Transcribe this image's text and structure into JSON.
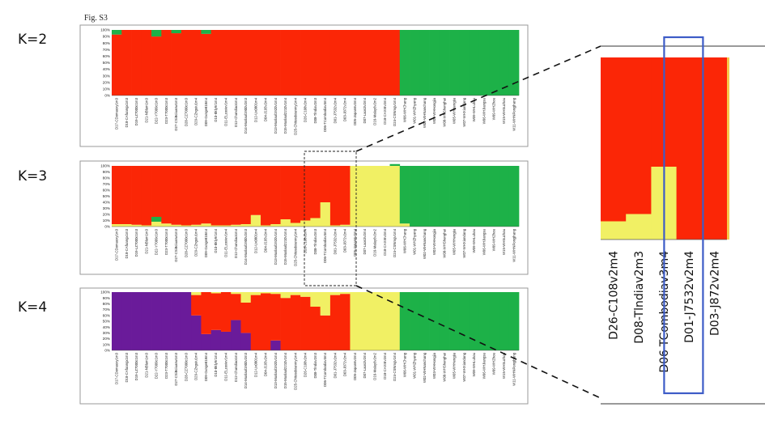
{
  "figure_label": "Fig. S3",
  "colors": {
    "red": "#fb2606",
    "green": "#1db148",
    "yellow": "#f1f064",
    "purple": "#6a1b9a",
    "frame": "#9a9a9a",
    "highlight": "#3d5cc7"
  },
  "samples": [
    "D17-CDomaoxy1m3",
    "D18-CAfaangx1m3",
    "D19-LZ7000c1m3",
    "D21-NBlam1m3",
    "D22-Y7009c1m3",
    "D23-T7000c1m3",
    "D27-CSiBciuasw1m3",
    "D28-CZ7000c1m3",
    "D29-CZnguiu1m4",
    "D09-Gxnge818m4",
    "D10-Bkly9r1m4",
    "D11-ELzoxiev1m4",
    "D12-Chandiao1m4",
    "D14-Muslaol1900v2m3",
    "D12-Ux0801m4",
    "D04-J195v2m4",
    "D13-Muslaol1920v1m4",
    "D15-Muslaol2210v1m4",
    "D25-Chitosdxianmy1m4",
    "D26-C108v2m4",
    "D08-Tlndiav2m3",
    "D06-TCombodiav3m4",
    "D01-J7532v2m4",
    "D03-J872v2m4",
    "D05-Japan6v2m4",
    "D07-Laos3v2m4",
    "D16-Malay6v2m2",
    "D18-CAXIEv2m4",
    "D24-CSNmgv1m4",
    "W06-WHChang",
    "W01-WHZhyang",
    "W02-WHNanchang",
    "W03-WHHongjia",
    "W08-WHShenghai",
    "W05-WHHengjia",
    "W07-WHXiandang",
    "W09-WHLuhou",
    "W06-WHJiangsu",
    "W09-WHZhou",
    "W15-WHSuzhou",
    "W11-WHNPongjhang"
  ],
  "zoom": {
    "labels": [
      "D26-C108v2m4",
      "D08-Tlndiav2m3",
      "D06-TCombodiav3m4",
      "D01-J7532v2m4",
      "D03-J872v2m4"
    ],
    "highlighted_index": 2
  },
  "chart_data": [
    {
      "type": "bar",
      "stacked": true,
      "k_label": "K=2",
      "y_ticks": [
        "0%",
        "10%",
        "20%",
        "30%",
        "40%",
        "50%",
        "60%",
        "70%",
        "80%",
        "90%",
        "100%"
      ],
      "ylim": [
        0,
        1
      ],
      "series": [
        {
          "color": "red",
          "values": [
            0.93,
            1,
            1,
            1,
            0.9,
            1,
            0.95,
            1,
            1,
            0.94,
            1,
            1,
            1,
            1,
            1,
            1,
            1,
            1,
            1,
            1,
            1,
            1,
            1,
            1,
            1,
            1,
            1,
            1,
            1,
            0,
            0,
            0,
            0,
            0,
            0,
            0,
            0,
            0,
            0,
            0,
            0
          ]
        },
        {
          "color": "green",
          "values": [
            0.07,
            0,
            0,
            0,
            0.1,
            0,
            0.05,
            0,
            0,
            0.06,
            0,
            0,
            0,
            0,
            0,
            0,
            0,
            0,
            0,
            0,
            0,
            0,
            0,
            0,
            0,
            0,
            0,
            0,
            0,
            1,
            1,
            1,
            1,
            1,
            1,
            1,
            1,
            1,
            1,
            1,
            1
          ]
        }
      ]
    },
    {
      "type": "bar",
      "stacked": true,
      "k_label": "K=3",
      "y_ticks": [
        "0%",
        "10%",
        "20%",
        "30%",
        "40%",
        "50%",
        "60%",
        "70%",
        "80%",
        "90%",
        "100%"
      ],
      "ylim": [
        0,
        1
      ],
      "series": [
        {
          "color": "yellow",
          "values": [
            0.04,
            0.04,
            0.03,
            0.02,
            0.08,
            0.05,
            0.03,
            0.02,
            0.03,
            0.05,
            0.02,
            0.02,
            0.03,
            0.04,
            0.19,
            0.02,
            0.04,
            0.12,
            0.06,
            0.1,
            0.14,
            0.4,
            0.02,
            0.03,
            1,
            1,
            1,
            1,
            1,
            0.05,
            0,
            0,
            0,
            0,
            0,
            0,
            0,
            0,
            0,
            0,
            0
          ]
        },
        {
          "color": "green",
          "values": [
            0,
            0,
            0,
            0,
            0.08,
            0,
            0,
            0,
            0,
            0,
            0,
            0,
            0,
            0,
            0,
            0,
            0,
            0,
            0,
            0,
            0,
            0,
            0,
            0,
            0,
            0,
            0,
            0,
            0.03,
            0.95,
            1,
            1,
            1,
            1,
            1,
            1,
            1,
            1,
            1,
            1,
            1
          ]
        },
        {
          "color": "red",
          "values": [
            0.96,
            0.96,
            0.97,
            0.98,
            0.84,
            0.95,
            0.97,
            0.98,
            0.97,
            0.95,
            0.98,
            0.98,
            0.97,
            0.96,
            0.81,
            0.98,
            0.96,
            0.88,
            0.94,
            0.9,
            0.86,
            0.6,
            0.98,
            0.97,
            0,
            0,
            0,
            0,
            0,
            0,
            0,
            0,
            0,
            0,
            0,
            0,
            0,
            0,
            0,
            0,
            0
          ]
        }
      ]
    },
    {
      "type": "bar",
      "stacked": true,
      "k_label": "K=4",
      "y_ticks": [
        "0%",
        "10%",
        "20%",
        "30%",
        "40%",
        "50%",
        "60%",
        "70%",
        "80%",
        "90%",
        "100%"
      ],
      "ylim": [
        0,
        1
      ],
      "series": [
        {
          "color": "purple",
          "values": [
            1,
            1,
            1,
            1,
            1,
            1,
            1,
            1,
            0.6,
            0.28,
            0.35,
            0.32,
            0.52,
            0.3,
            0,
            0,
            0.17,
            0,
            0,
            0,
            0,
            0,
            0,
            0,
            0,
            0,
            0,
            0,
            0,
            0,
            0,
            0,
            0,
            0,
            0,
            0,
            0,
            0,
            0,
            0,
            0
          ]
        },
        {
          "color": "red",
          "values": [
            0,
            0,
            0,
            0,
            0,
            0,
            0,
            0,
            0.35,
            0.72,
            0.63,
            0.68,
            0.45,
            0.52,
            0.95,
            0.98,
            0.8,
            0.9,
            0.95,
            0.92,
            0.75,
            0.6,
            0.95,
            0.97,
            0,
            0,
            0,
            0,
            0,
            0,
            0,
            0,
            0,
            0,
            0,
            0,
            0,
            0,
            0,
            0,
            0
          ]
        },
        {
          "color": "yellow",
          "values": [
            0,
            0,
            0,
            0,
            0,
            0,
            0,
            0,
            0.05,
            0,
            0.02,
            0,
            0.03,
            0.18,
            0.05,
            0.02,
            0.03,
            0.1,
            0.05,
            0.08,
            0.25,
            0.4,
            0.05,
            0.03,
            1,
            1,
            1,
            1,
            1,
            0,
            0,
            0,
            0,
            0,
            0,
            0,
            0,
            0,
            0,
            0,
            0
          ]
        },
        {
          "color": "green",
          "values": [
            0,
            0,
            0,
            0,
            0,
            0,
            0,
            0,
            0,
            0,
            0,
            0,
            0,
            0,
            0,
            0,
            0,
            0,
            0,
            0,
            0,
            0,
            0,
            0,
            0,
            0,
            0,
            0,
            0,
            1,
            1,
            1,
            1,
            1,
            1,
            1,
            1,
            1,
            1,
            1,
            1
          ]
        }
      ]
    },
    {
      "type": "bar",
      "stacked": true,
      "k_label": "",
      "categories_ref": "zoom.labels",
      "series": [
        {
          "color": "yellow",
          "values": [
            0.1,
            0.14,
            0.4,
            0,
            0
          ]
        },
        {
          "color": "red",
          "values": [
            0.9,
            0.86,
            0.6,
            1,
            1
          ]
        }
      ]
    }
  ]
}
